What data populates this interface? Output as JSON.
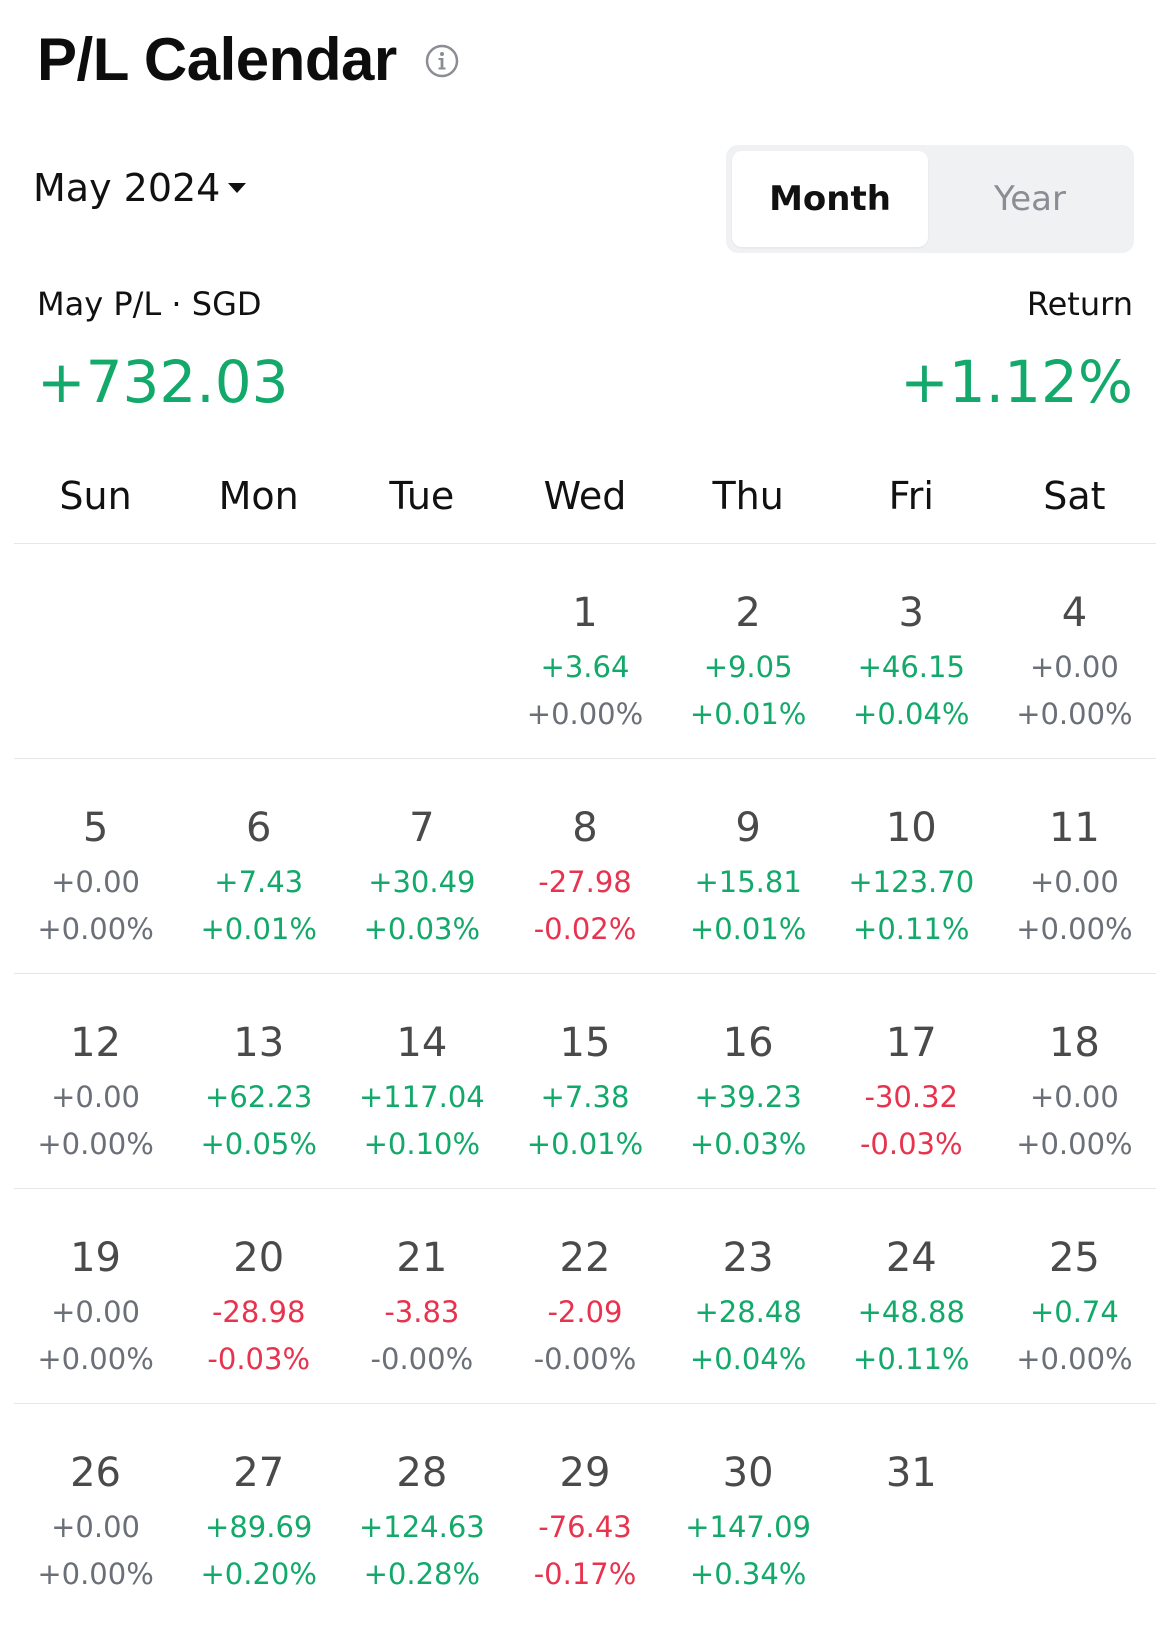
{
  "header": {
    "title": "P/L Calendar",
    "info_icon": "info-circle-icon"
  },
  "period": {
    "selected": "May 2024"
  },
  "view_toggle": {
    "options": [
      "Month",
      "Year"
    ],
    "selected": "Month"
  },
  "summary": {
    "pl_label": "May P/L · SGD",
    "pl_value": "+732.03",
    "return_label": "Return",
    "return_value": "+1.12%"
  },
  "colors": {
    "positive": "#13a96b",
    "negative": "#e8334f",
    "neutral": "#6b7078"
  },
  "weekdays": [
    "Sun",
    "Mon",
    "Tue",
    "Wed",
    "Thu",
    "Fri",
    "Sat"
  ],
  "weeks": [
    [
      null,
      null,
      null,
      {
        "day": "1",
        "pl": "+3.64",
        "pct": "+0.00%",
        "pl_status": "positive",
        "pct_status": "neutral"
      },
      {
        "day": "2",
        "pl": "+9.05",
        "pct": "+0.01%",
        "pl_status": "positive",
        "pct_status": "positive"
      },
      {
        "day": "3",
        "pl": "+46.15",
        "pct": "+0.04%",
        "pl_status": "positive",
        "pct_status": "positive"
      },
      {
        "day": "4",
        "pl": "+0.00",
        "pct": "+0.00%",
        "pl_status": "neutral",
        "pct_status": "neutral"
      }
    ],
    [
      {
        "day": "5",
        "pl": "+0.00",
        "pct": "+0.00%",
        "pl_status": "neutral",
        "pct_status": "neutral"
      },
      {
        "day": "6",
        "pl": "+7.43",
        "pct": "+0.01%",
        "pl_status": "positive",
        "pct_status": "positive"
      },
      {
        "day": "7",
        "pl": "+30.49",
        "pct": "+0.03%",
        "pl_status": "positive",
        "pct_status": "positive"
      },
      {
        "day": "8",
        "pl": "-27.98",
        "pct": "-0.02%",
        "pl_status": "negative",
        "pct_status": "negative"
      },
      {
        "day": "9",
        "pl": "+15.81",
        "pct": "+0.01%",
        "pl_status": "positive",
        "pct_status": "positive"
      },
      {
        "day": "10",
        "pl": "+123.70",
        "pct": "+0.11%",
        "pl_status": "positive",
        "pct_status": "positive"
      },
      {
        "day": "11",
        "pl": "+0.00",
        "pct": "+0.00%",
        "pl_status": "neutral",
        "pct_status": "neutral"
      }
    ],
    [
      {
        "day": "12",
        "pl": "+0.00",
        "pct": "+0.00%",
        "pl_status": "neutral",
        "pct_status": "neutral"
      },
      {
        "day": "13",
        "pl": "+62.23",
        "pct": "+0.05%",
        "pl_status": "positive",
        "pct_status": "positive"
      },
      {
        "day": "14",
        "pl": "+117.04",
        "pct": "+0.10%",
        "pl_status": "positive",
        "pct_status": "positive"
      },
      {
        "day": "15",
        "pl": "+7.38",
        "pct": "+0.01%",
        "pl_status": "positive",
        "pct_status": "positive"
      },
      {
        "day": "16",
        "pl": "+39.23",
        "pct": "+0.03%",
        "pl_status": "positive",
        "pct_status": "positive"
      },
      {
        "day": "17",
        "pl": "-30.32",
        "pct": "-0.03%",
        "pl_status": "negative",
        "pct_status": "negative"
      },
      {
        "day": "18",
        "pl": "+0.00",
        "pct": "+0.00%",
        "pl_status": "neutral",
        "pct_status": "neutral"
      }
    ],
    [
      {
        "day": "19",
        "pl": "+0.00",
        "pct": "+0.00%",
        "pl_status": "neutral",
        "pct_status": "neutral"
      },
      {
        "day": "20",
        "pl": "-28.98",
        "pct": "-0.03%",
        "pl_status": "negative",
        "pct_status": "negative"
      },
      {
        "day": "21",
        "pl": "-3.83",
        "pct": "-0.00%",
        "pl_status": "negative",
        "pct_status": "neutral"
      },
      {
        "day": "22",
        "pl": "-2.09",
        "pct": "-0.00%",
        "pl_status": "negative",
        "pct_status": "neutral"
      },
      {
        "day": "23",
        "pl": "+28.48",
        "pct": "+0.04%",
        "pl_status": "positive",
        "pct_status": "positive"
      },
      {
        "day": "24",
        "pl": "+48.88",
        "pct": "+0.11%",
        "pl_status": "positive",
        "pct_status": "positive"
      },
      {
        "day": "25",
        "pl": "+0.74",
        "pct": "+0.00%",
        "pl_status": "positive",
        "pct_status": "neutral"
      }
    ],
    [
      {
        "day": "26",
        "pl": "+0.00",
        "pct": "+0.00%",
        "pl_status": "neutral",
        "pct_status": "neutral"
      },
      {
        "day": "27",
        "pl": "+89.69",
        "pct": "+0.20%",
        "pl_status": "positive",
        "pct_status": "positive"
      },
      {
        "day": "28",
        "pl": "+124.63",
        "pct": "+0.28%",
        "pl_status": "positive",
        "pct_status": "positive"
      },
      {
        "day": "29",
        "pl": "-76.43",
        "pct": "-0.17%",
        "pl_status": "negative",
        "pct_status": "negative"
      },
      {
        "day": "30",
        "pl": "+147.09",
        "pct": "+0.34%",
        "pl_status": "positive",
        "pct_status": "positive"
      },
      {
        "day": "31"
      },
      null
    ]
  ]
}
